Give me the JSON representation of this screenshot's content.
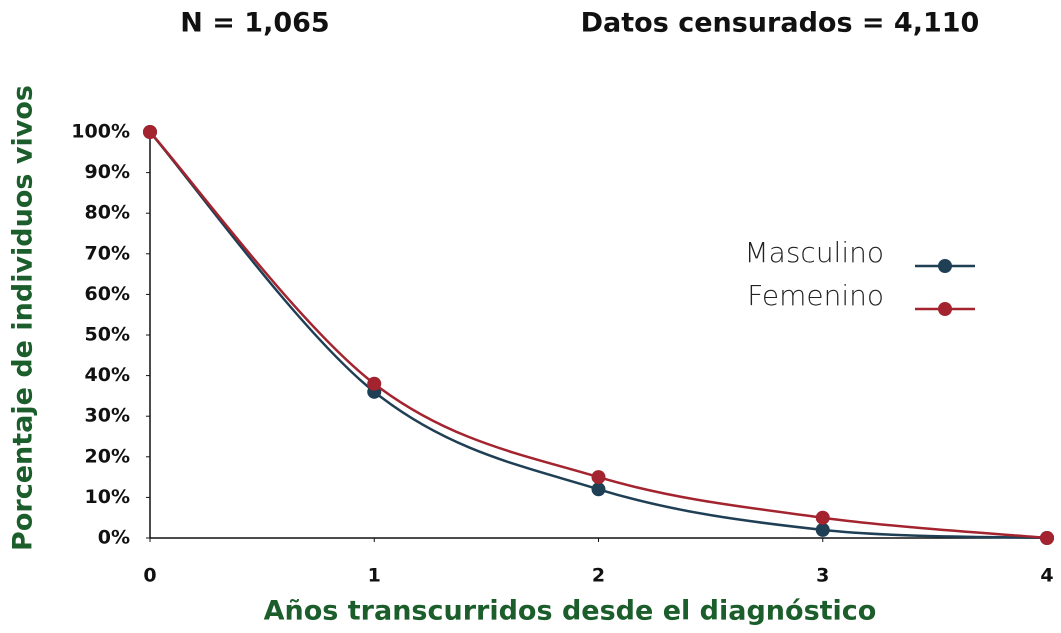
{
  "chart_data": {
    "type": "line",
    "annotations": [
      "N = 1,065",
      "Datos censurados = 4,110"
    ],
    "x_label": "Años transcurridos desde el diagnóstico",
    "y_label": "Porcentaje de individuos vivos",
    "x": [
      0,
      1,
      2,
      3,
      4
    ],
    "series": [
      {
        "name": "Masculino",
        "color": "#1f3f55",
        "values": [
          100,
          36,
          12,
          2,
          0
        ]
      },
      {
        "name": "Femenino",
        "color": "#a3232f",
        "values": [
          100,
          38,
          15,
          5,
          0
        ]
      }
    ],
    "xlim": [
      0,
      4
    ],
    "xticks": [
      0,
      1,
      2,
      3,
      4
    ],
    "ylim": [
      0,
      100
    ],
    "yticks": [
      {
        "value": 0,
        "label": "0%"
      },
      {
        "value": 10,
        "label": "10%"
      },
      {
        "value": 20,
        "label": "20%"
      },
      {
        "value": 30,
        "label": "30%"
      },
      {
        "value": 40,
        "label": "40%"
      },
      {
        "value": 50,
        "label": "50%"
      },
      {
        "value": 60,
        "label": "60%"
      },
      {
        "value": 70,
        "label": "70%"
      },
      {
        "value": 80,
        "label": "80%"
      },
      {
        "value": 90,
        "label": "90%"
      },
      {
        "value": 100,
        "label": "100%"
      }
    ],
    "grid": false,
    "smooth": true,
    "legend": "right"
  }
}
